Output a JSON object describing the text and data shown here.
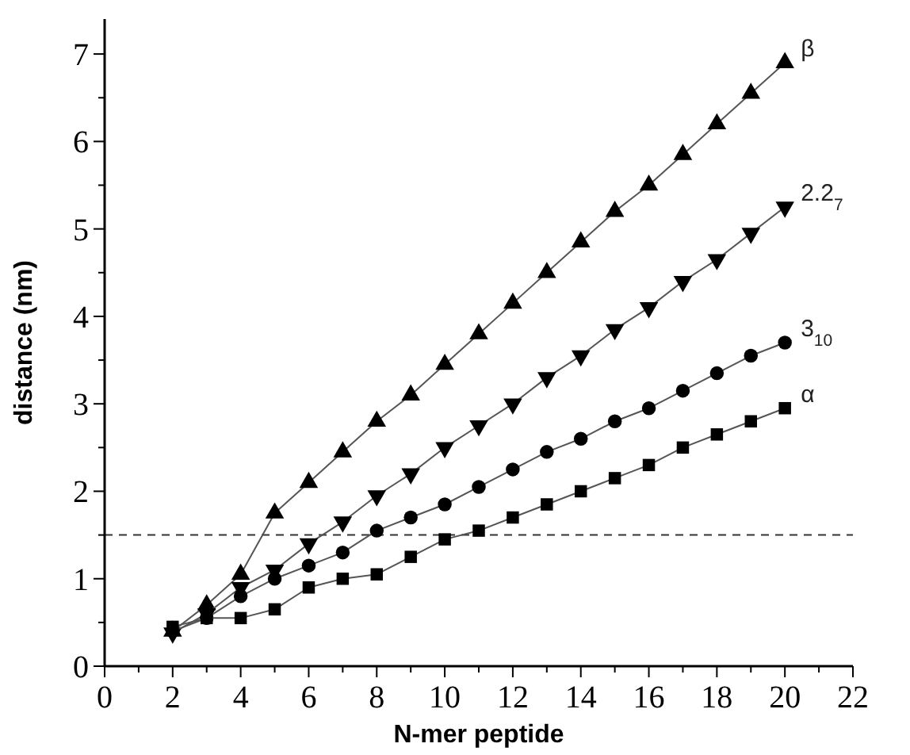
{
  "chart_data": {
    "type": "line",
    "xlabel": "N-mer peptide",
    "ylabel": "distance (nm)",
    "x": [
      2,
      3,
      4,
      5,
      6,
      7,
      8,
      9,
      10,
      11,
      12,
      13,
      14,
      15,
      16,
      17,
      18,
      19,
      20
    ],
    "xlim": [
      0,
      22
    ],
    "ylim": [
      0,
      7.4
    ],
    "xticks": [
      0,
      {
        "value": 1,
        "label": null
      },
      2,
      {
        "value": 3,
        "label": null
      },
      4,
      {
        "value": 5,
        "label": null
      },
      6,
      {
        "value": 7,
        "label": null
      },
      8,
      {
        "value": 9,
        "label": null
      },
      10,
      {
        "value": 11,
        "label": null
      },
      12,
      {
        "value": 13,
        "label": null
      },
      14,
      {
        "value": 15,
        "label": null
      },
      16,
      {
        "value": 17,
        "label": null
      },
      18,
      {
        "value": 19,
        "label": null
      },
      20,
      {
        "value": 21,
        "label": null
      },
      22
    ],
    "yticks": [
      0,
      {
        "value": 0.5,
        "label": null
      },
      1,
      {
        "value": 1.5,
        "label": null
      },
      2,
      {
        "value": 2.5,
        "label": null
      },
      3,
      {
        "value": 3.5,
        "label": null
      },
      4,
      {
        "value": 4.5,
        "label": null
      },
      5,
      {
        "value": 5.5,
        "label": null
      },
      6,
      {
        "value": 6.5,
        "label": null
      },
      7
    ],
    "grid": false,
    "line_style": "solid",
    "ref_lines": [
      {
        "axis": "y",
        "value": 1.5,
        "color": "#333333",
        "line_style": "dashed"
      }
    ],
    "series": [
      {
        "name": "β",
        "color": "#000000",
        "marker": "triangle",
        "values": [
          0.4,
          0.7,
          1.05,
          1.75,
          2.1,
          2.45,
          2.8,
          3.1,
          3.45,
          3.8,
          4.15,
          4.5,
          4.85,
          5.2,
          5.5,
          5.85,
          6.2,
          6.55,
          6.9
        ]
      },
      {
        "name": "2.2$_{7}$",
        "color": "#000000",
        "marker": "triangle-down",
        "values": [
          0.38,
          0.6,
          0.9,
          1.1,
          1.4,
          1.65,
          1.95,
          2.2,
          2.5,
          2.75,
          3.0,
          3.3,
          3.55,
          3.85,
          4.1,
          4.4,
          4.65,
          4.95,
          5.25
        ]
      },
      {
        "name": "3$_{10}$",
        "color": "#000000",
        "marker": "circle",
        "values": [
          0.4,
          0.55,
          0.8,
          1.0,
          1.15,
          1.3,
          1.55,
          1.7,
          1.85,
          2.05,
          2.25,
          2.45,
          2.6,
          2.8,
          2.95,
          3.15,
          3.35,
          3.55,
          3.7
        ]
      },
      {
        "name": "α",
        "color": "#000000",
        "marker": "square",
        "values": [
          0.45,
          0.55,
          0.55,
          0.65,
          0.9,
          1.0,
          1.05,
          1.25,
          1.45,
          1.55,
          1.7,
          1.85,
          2.0,
          2.15,
          2.3,
          2.5,
          2.65,
          2.8,
          2.95
        ]
      }
    ]
  }
}
